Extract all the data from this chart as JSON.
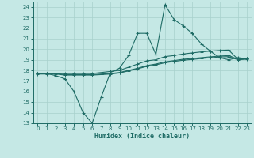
{
  "xlabel": "Humidex (Indice chaleur)",
  "xlim": [
    -0.5,
    23.5
  ],
  "ylim": [
    13,
    24.5
  ],
  "yticks": [
    13,
    14,
    15,
    16,
    17,
    18,
    19,
    20,
    21,
    22,
    23,
    24
  ],
  "xticks": [
    0,
    1,
    2,
    3,
    4,
    5,
    6,
    7,
    8,
    9,
    10,
    11,
    12,
    13,
    14,
    15,
    16,
    17,
    18,
    19,
    20,
    21,
    22,
    23
  ],
  "bg_color": "#c5e8e5",
  "line_color": "#1e6b65",
  "grid_color": "#a8d0cc",
  "line1_x": [
    0,
    1,
    2,
    3,
    4,
    5,
    6,
    7,
    8,
    9,
    10,
    11,
    12,
    13,
    14,
    15,
    16,
    17,
    18,
    19,
    20,
    21,
    22,
    23
  ],
  "line1_y": [
    17.7,
    17.7,
    17.5,
    17.2,
    16.0,
    14.0,
    13.0,
    15.5,
    17.8,
    18.2,
    19.4,
    21.5,
    21.5,
    19.5,
    24.2,
    22.8,
    22.2,
    21.5,
    20.5,
    19.8,
    19.2,
    19.0,
    19.2,
    19.1
  ],
  "line2_x": [
    0,
    1,
    2,
    3,
    4,
    5,
    6,
    7,
    8,
    9,
    10,
    11,
    12,
    13,
    14,
    15,
    16,
    17,
    18,
    19,
    20,
    21,
    22,
    23
  ],
  "line2_y": [
    17.7,
    17.7,
    17.7,
    17.7,
    17.7,
    17.7,
    17.7,
    17.8,
    17.9,
    18.0,
    18.3,
    18.6,
    18.9,
    19.0,
    19.3,
    19.4,
    19.55,
    19.65,
    19.75,
    19.82,
    19.88,
    19.92,
    19.05,
    19.15
  ],
  "line3_x": [
    0,
    1,
    2,
    3,
    4,
    5,
    6,
    7,
    8,
    9,
    10,
    11,
    12,
    13,
    14,
    15,
    16,
    17,
    18,
    19,
    20,
    21,
    22,
    23
  ],
  "line3_y": [
    17.7,
    17.7,
    17.7,
    17.6,
    17.6,
    17.6,
    17.6,
    17.65,
    17.7,
    17.8,
    18.0,
    18.2,
    18.45,
    18.6,
    18.8,
    18.92,
    19.05,
    19.12,
    19.2,
    19.28,
    19.35,
    19.4,
    19.05,
    19.1
  ],
  "line4_x": [
    0,
    1,
    2,
    3,
    4,
    5,
    6,
    7,
    8,
    9,
    10,
    11,
    12,
    13,
    14,
    15,
    16,
    17,
    18,
    19,
    20,
    21,
    22,
    23
  ],
  "line4_y": [
    17.65,
    17.65,
    17.65,
    17.55,
    17.55,
    17.55,
    17.55,
    17.6,
    17.65,
    17.75,
    17.95,
    18.15,
    18.38,
    18.52,
    18.72,
    18.84,
    18.96,
    19.03,
    19.12,
    19.19,
    19.26,
    19.3,
    19.0,
    19.05
  ]
}
